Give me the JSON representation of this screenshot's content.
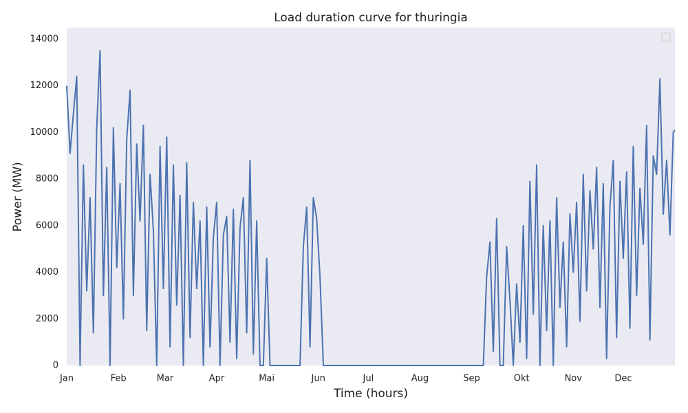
{
  "chart_data": {
    "type": "line",
    "title": "Load duration curve for thuringia",
    "xlabel": "Time (hours)",
    "ylabel": "Power (MW)",
    "color": "#4c72b0",
    "grid": false,
    "legend": "upper right",
    "xlim": [
      0,
      8760
    ],
    "ylim": [
      0,
      14500
    ],
    "xticks": [
      {
        "value": 0,
        "label": "Jan"
      },
      {
        "value": 744,
        "label": "Feb"
      },
      {
        "value": 1416,
        "label": "Mar"
      },
      {
        "value": 2160,
        "label": "Apr"
      },
      {
        "value": 2880,
        "label": "Mai"
      },
      {
        "value": 3624,
        "label": "Jun"
      },
      {
        "value": 4344,
        "label": "Jul"
      },
      {
        "value": 5088,
        "label": "Aug"
      },
      {
        "value": 5832,
        "label": "Sep"
      },
      {
        "value": 6552,
        "label": "Okt"
      },
      {
        "value": 7296,
        "label": "Nov"
      },
      {
        "value": 8016,
        "label": "Dec"
      }
    ],
    "yticks": [
      0,
      2000,
      4000,
      6000,
      8000,
      10000,
      12000,
      14000
    ],
    "x": [
      0,
      48,
      96,
      144,
      192,
      240,
      288,
      336,
      384,
      432,
      480,
      528,
      576,
      624,
      672,
      720,
      768,
      816,
      864,
      912,
      960,
      1008,
      1056,
      1104,
      1152,
      1200,
      1248,
      1296,
      1344,
      1392,
      1440,
      1488,
      1536,
      1584,
      1632,
      1680,
      1728,
      1776,
      1824,
      1872,
      1920,
      1968,
      2016,
      2064,
      2112,
      2160,
      2208,
      2256,
      2304,
      2352,
      2400,
      2448,
      2496,
      2544,
      2592,
      2640,
      2688,
      2736,
      2784,
      2832,
      2880,
      2928,
      2976,
      3024,
      3072,
      3120,
      3168,
      3216,
      3264,
      3312,
      3360,
      3408,
      3456,
      3504,
      3552,
      3600,
      3648,
      3696,
      3744,
      3792,
      3840,
      3888,
      3936,
      3984,
      4032,
      4080,
      4128,
      4176,
      4224,
      4272,
      4320,
      4368,
      4416,
      4464,
      4512,
      4560,
      4608,
      4656,
      4704,
      4752,
      4800,
      4848,
      4896,
      4944,
      4992,
      5040,
      5088,
      5136,
      5184,
      5232,
      5280,
      5328,
      5376,
      5424,
      5472,
      5520,
      5568,
      5616,
      5664,
      5712,
      5760,
      5808,
      5856,
      5904,
      5952,
      6000,
      6048,
      6096,
      6144,
      6192,
      6240,
      6288,
      6336,
      6384,
      6432,
      6480,
      6528,
      6576,
      6624,
      6672,
      6720,
      6768,
      6816,
      6864,
      6912,
      6960,
      7008,
      7056,
      7104,
      7152,
      7200,
      7248,
      7296,
      7344,
      7392,
      7440,
      7488,
      7536,
      7584,
      7632,
      7680,
      7728,
      7776,
      7824,
      7872,
      7920,
      7968,
      8016,
      8064,
      8112,
      8160,
      8208,
      8256,
      8304,
      8352,
      8400,
      8448,
      8496,
      8544,
      8592,
      8640,
      8688,
      8736,
      8759
    ],
    "values": [
      12000,
      9100,
      10800,
      12400,
      0,
      8600,
      3200,
      7200,
      1400,
      10200,
      13500,
      3000,
      8500,
      0,
      10200,
      4200,
      7800,
      2000,
      9700,
      11800,
      3000,
      9500,
      6200,
      10300,
      1500,
      8200,
      5800,
      0,
      9400,
      3300,
      9800,
      800,
      8600,
      2600,
      7300,
      0,
      8700,
      1200,
      7000,
      3300,
      6200,
      0,
      6800,
      800,
      5500,
      7000,
      0,
      5600,
      6400,
      1000,
      6700,
      300,
      5900,
      7200,
      1400,
      8800,
      500,
      6200,
      0,
      0,
      4600,
      0,
      0,
      0,
      0,
      0,
      0,
      0,
      0,
      0,
      0,
      5100,
      6800,
      800,
      7200,
      6300,
      3800,
      0,
      0,
      0,
      0,
      0,
      0,
      0,
      0,
      0,
      0,
      0,
      0,
      0,
      0,
      0,
      0,
      0,
      0,
      0,
      0,
      0,
      0,
      0,
      0,
      0,
      0,
      0,
      0,
      0,
      0,
      0,
      0,
      0,
      0,
      0,
      0,
      0,
      0,
      0,
      0,
      0,
      0,
      0,
      0,
      0,
      0,
      0,
      0,
      0,
      3800,
      5300,
      600,
      6300,
      0,
      0,
      5100,
      2800,
      0,
      3500,
      1000,
      6000,
      300,
      7900,
      2200,
      8600,
      0,
      6000,
      1500,
      6200,
      0,
      7200,
      2500,
      5300,
      800,
      6500,
      4000,
      7000,
      1900,
      8200,
      3200,
      7500,
      5000,
      8500,
      2500,
      7800,
      300,
      6800,
      8800,
      1200,
      7900,
      4600,
      8300,
      1600,
      9400,
      3000,
      7600,
      5200,
      10300,
      1100,
      9000,
      8200,
      12300,
      6500,
      8800,
      5600,
      10000,
      10100
    ]
  }
}
